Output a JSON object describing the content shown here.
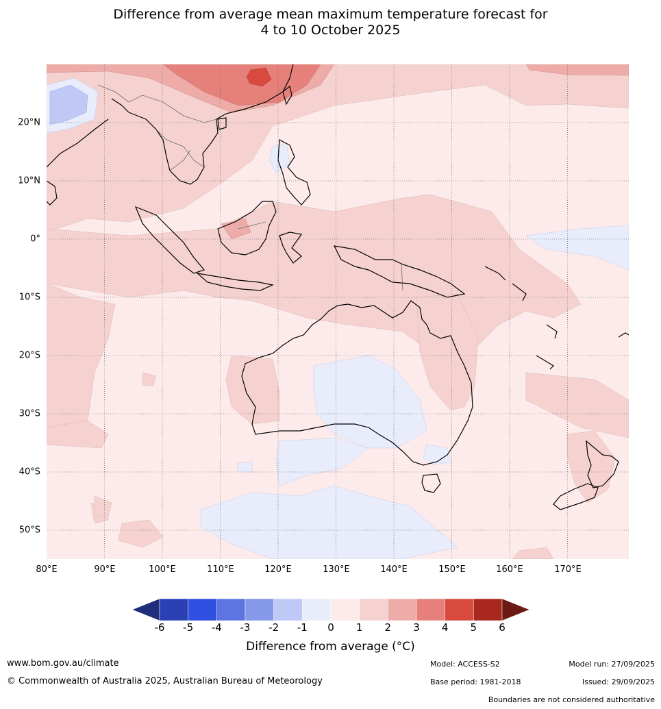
{
  "title": {
    "line1": "Difference from average mean maximum temperature forecast for",
    "line2": "4 to 10 October 2025"
  },
  "axes": {
    "lat_labels": [
      "20°N",
      "10°N",
      "0°",
      "10°S",
      "20°S",
      "30°S",
      "40°S",
      "50°S"
    ],
    "lon_labels": [
      "80°E",
      "90°E",
      "100°E",
      "110°E",
      "120°E",
      "130°E",
      "140°E",
      "150°E",
      "160°E",
      "170°E"
    ]
  },
  "colorbar": {
    "ticks": [
      "-6",
      "-5",
      "-4",
      "-3",
      "-2",
      "-1",
      "0",
      "1",
      "2",
      "3",
      "4",
      "5",
      "6"
    ],
    "colors": [
      "#1f2d7a",
      "#2a40b4",
      "#2f4fe0",
      "#5c75e2",
      "#8698ea",
      "#c0c9f5",
      "#e8ecfb",
      "#fcebea",
      "#f5d2d0",
      "#edaca8",
      "#e5807a",
      "#d94a3e",
      "#a8271f",
      "#6e1a14"
    ],
    "label": "Difference from average (°C)"
  },
  "footer": {
    "website": "www.bom.gov.au/climate",
    "copyright": "© Commonwealth of Australia 2025, Australian Bureau of Meteorology",
    "model": "Model: ACCESS-S2",
    "base_period": "Base period: 1981-2018",
    "model_run": "Model run: 27/09/2025",
    "issued": "Issued: 29/09/2025",
    "disclaimer": "Boundaries are not considered authoritative"
  }
}
